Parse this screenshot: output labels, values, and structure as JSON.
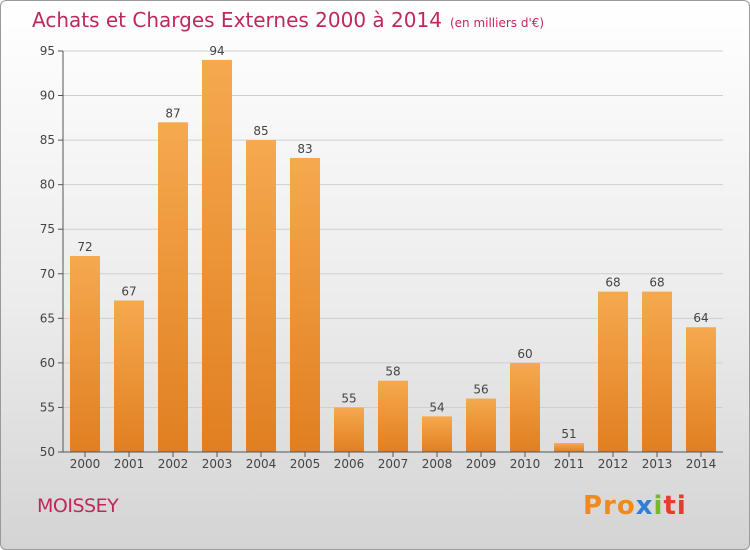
{
  "title": "Achats et Charges Externes 2000 à 2014",
  "subtitle": "(en milliers d'€)",
  "commune": "MOISSEY",
  "logo": {
    "p1": "Pro",
    "p2": "x",
    "p3": "i",
    "p4": "ti"
  },
  "colors": {
    "bar_light": "#f6a94e",
    "bar_dark": "#e07f22",
    "title": "#c0285a"
  },
  "chart_data": {
    "type": "bar",
    "categories": [
      "2000",
      "2001",
      "2002",
      "2003",
      "2004",
      "2005",
      "2006",
      "2007",
      "2008",
      "2009",
      "2010",
      "2011",
      "2012",
      "2013",
      "2014"
    ],
    "values": [
      72,
      67,
      87,
      94,
      85,
      83,
      55,
      58,
      54,
      56,
      60,
      51,
      68,
      68,
      64
    ],
    "ylim": [
      50,
      95
    ],
    "yticks": [
      50,
      55,
      60,
      65,
      70,
      75,
      80,
      85,
      90,
      95
    ],
    "grid": true,
    "data_labels": true
  }
}
